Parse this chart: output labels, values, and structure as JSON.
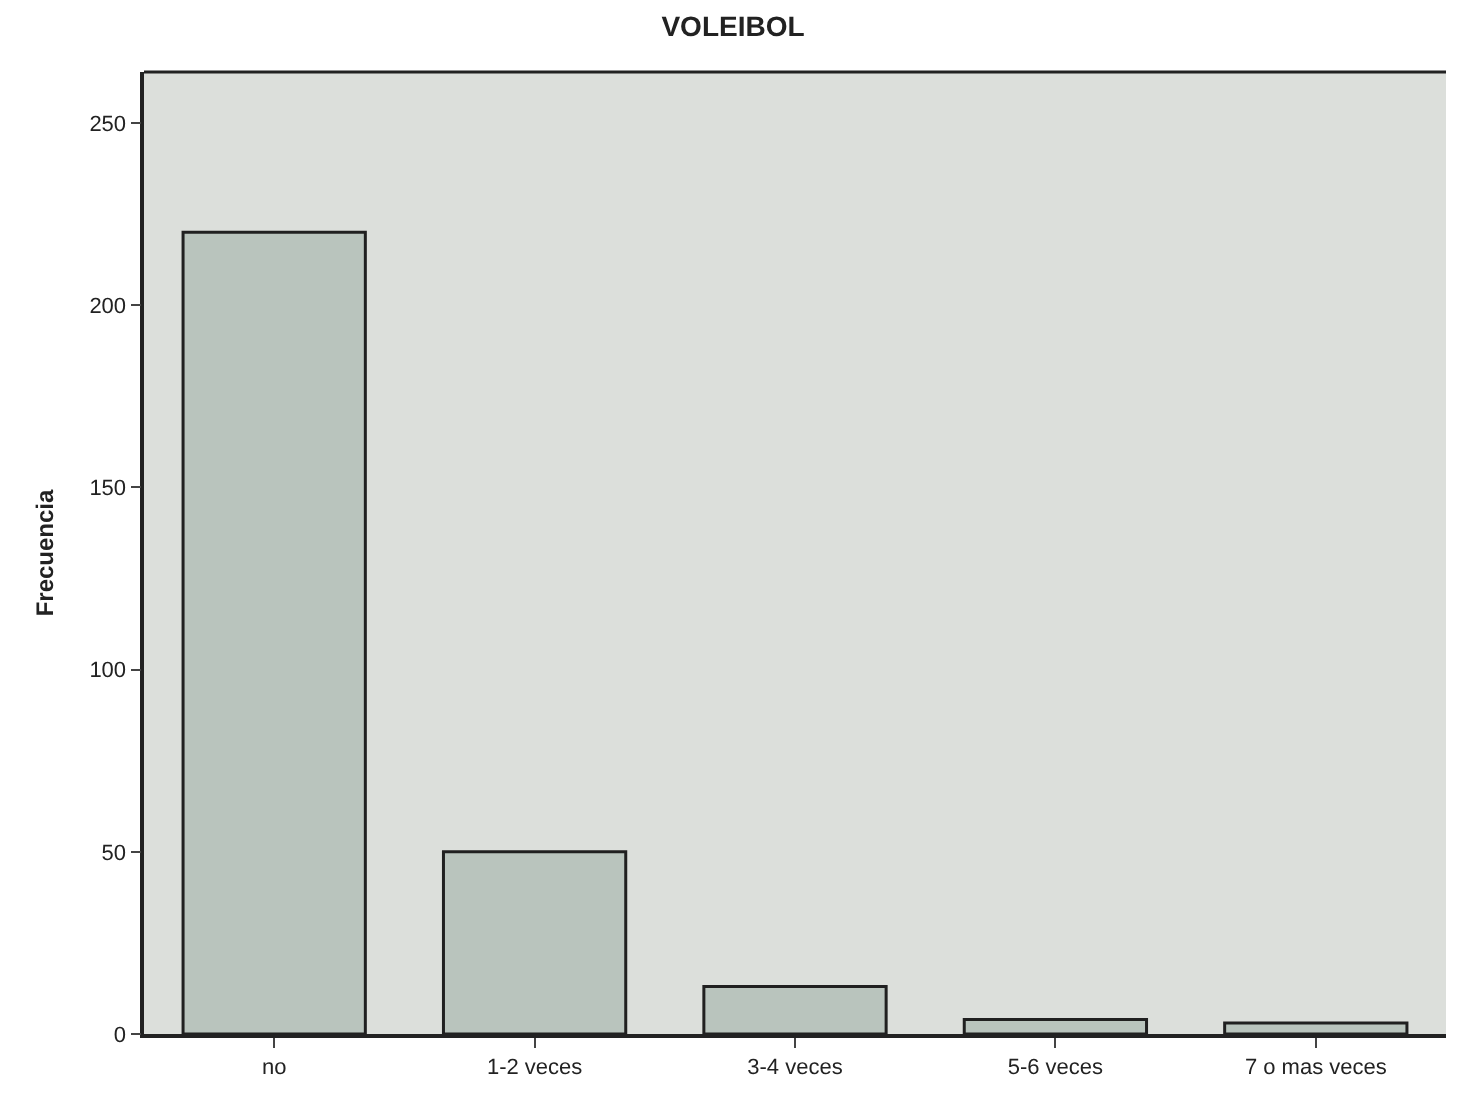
{
  "chart_data": {
    "type": "bar",
    "title": "VOLEIBOL",
    "ylabel": "Frecuencia",
    "categories": [
      "no",
      "1-2 veces",
      "3-4 veces",
      "5-6 veces",
      "7 o mas veces"
    ],
    "values": [
      220,
      50,
      13,
      4,
      3
    ],
    "color": "#b9c4bd",
    "ylim": [
      0,
      264
    ],
    "yticks": [
      0,
      50,
      100,
      150,
      200,
      250
    ],
    "grid": false,
    "legend": false
  }
}
